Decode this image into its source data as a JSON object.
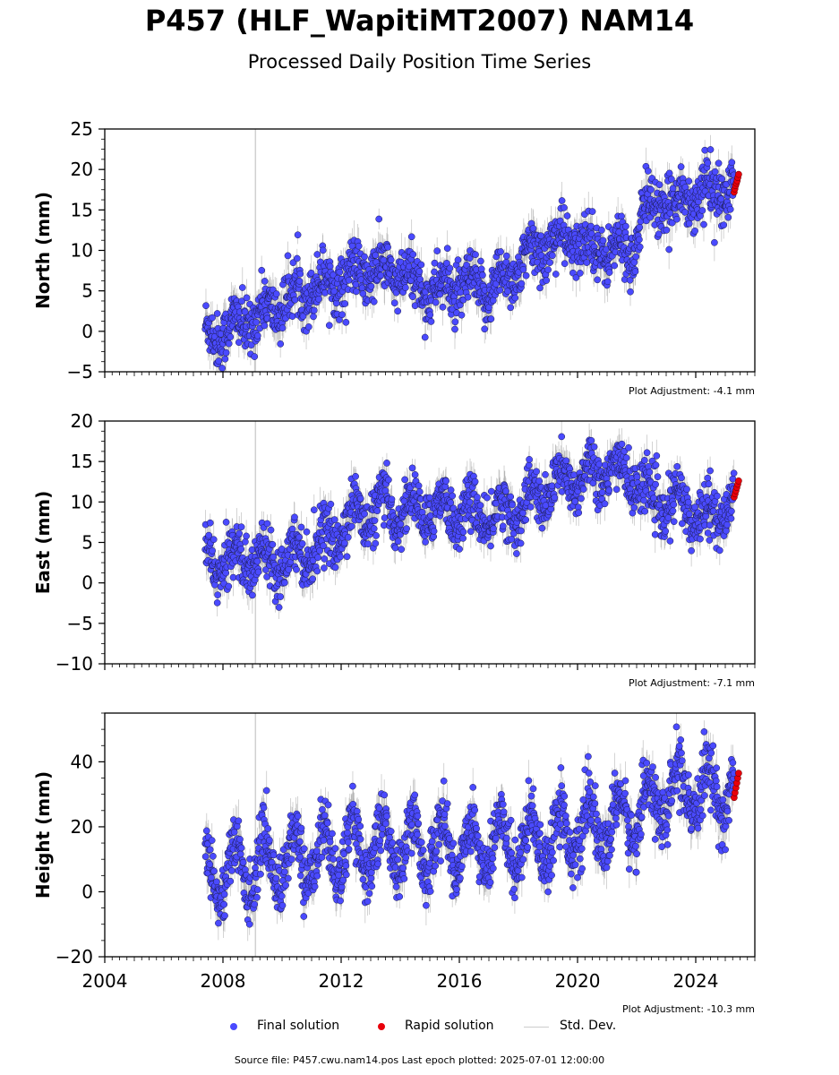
{
  "title": "P457 (HLF_WapitiMT2007) NAM14",
  "subtitle": "Processed Daily Position Time Series",
  "footer": "Source file: P457.cwu.nam14.pos  Last epoch plotted: 2025-07-01 12:00:00",
  "legend": {
    "final": "Final solution",
    "rapid": "Rapid solution",
    "std": "Std. Dev."
  },
  "colors": {
    "final_fill": "#4a4aff",
    "final_edge": "#1a1a4a",
    "rapid_fill": "#e8000b",
    "stddev": "#cccccc",
    "vline": "#d0d0d0"
  },
  "chart_data": [
    {
      "type": "scatter",
      "ylabel": "North (mm)",
      "ylim": [
        -5,
        25
      ],
      "yticks": [
        -5,
        0,
        5,
        10,
        15,
        20,
        25
      ],
      "adjustment": "Plot Adjustment: -4.1 mm",
      "trend": [
        [
          2007.4,
          -0.5
        ],
        [
          2008.0,
          0.0
        ],
        [
          2009.0,
          1.5
        ],
        [
          2010.0,
          3.5
        ],
        [
          2011.0,
          5.5
        ],
        [
          2012.0,
          6.5
        ],
        [
          2013.0,
          7.5
        ],
        [
          2014.0,
          7.0
        ],
        [
          2015.0,
          5.0
        ],
        [
          2016.0,
          5.5
        ],
        [
          2017.0,
          5.0
        ],
        [
          2018.0,
          8.0
        ],
        [
          2019.0,
          11.0
        ],
        [
          2020.0,
          11.0
        ],
        [
          2021.0,
          10.0
        ],
        [
          2021.9,
          10.0
        ],
        [
          2022.3,
          15.5
        ],
        [
          2023.0,
          15.5
        ],
        [
          2024.0,
          17.0
        ],
        [
          2025.5,
          17.5
        ]
      ],
      "amplitude": 1.3,
      "noise": 1.7,
      "rapid": {
        "x_start": 2025.3,
        "x_end": 2025.45,
        "values": [
          17.2,
          17.6,
          18.0,
          18.3,
          18.6,
          19.0,
          19.4
        ]
      }
    },
    {
      "type": "scatter",
      "ylabel": "East (mm)",
      "ylim": [
        -10,
        20
      ],
      "yticks": [
        -10,
        -5,
        0,
        5,
        10,
        15,
        20
      ],
      "adjustment": "Plot Adjustment: -7.1 mm",
      "trend": [
        [
          2007.4,
          2.5
        ],
        [
          2008.5,
          3.0
        ],
        [
          2009.5,
          3.0
        ],
        [
          2010.5,
          3.5
        ],
        [
          2011.5,
          5.0
        ],
        [
          2012.5,
          8.5
        ],
        [
          2013.5,
          9.0
        ],
        [
          2014.5,
          9.0
        ],
        [
          2016.0,
          9.0
        ],
        [
          2017.0,
          8.0
        ],
        [
          2018.0,
          9.0
        ],
        [
          2019.0,
          11.5
        ],
        [
          2020.0,
          13.0
        ],
        [
          2021.0,
          14.0
        ],
        [
          2022.0,
          13.0
        ],
        [
          2022.5,
          10.0
        ],
        [
          2023.5,
          9.5
        ],
        [
          2024.6,
          8.0
        ],
        [
          2025.5,
          11.5
        ]
      ],
      "amplitude": 2.0,
      "noise": 1.6,
      "rapid": {
        "x_start": 2025.3,
        "x_end": 2025.45,
        "values": [
          10.6,
          11.0,
          11.4,
          11.8,
          12.2,
          12.6
        ]
      }
    },
    {
      "type": "scatter",
      "ylabel": "Height (mm)",
      "ylim": [
        -20,
        55
      ],
      "yticks": [
        -20,
        0,
        20,
        40
      ],
      "adjustment": "Plot Adjustment: -10.3 mm",
      "trend": [
        [
          2007.4,
          5.0
        ],
        [
          2009.0,
          8.0
        ],
        [
          2011.0,
          11.0
        ],
        [
          2013.0,
          14.0
        ],
        [
          2015.0,
          14.0
        ],
        [
          2017.0,
          14.0
        ],
        [
          2019.0,
          17.0
        ],
        [
          2021.0,
          20.0
        ],
        [
          2022.0,
          24.0
        ],
        [
          2023.0,
          30.0
        ],
        [
          2024.0,
          30.0
        ],
        [
          2025.5,
          32.0
        ]
      ],
      "amplitude": 8.5,
      "noise": 4.5,
      "rapid": {
        "x_start": 2025.3,
        "x_end": 2025.45,
        "values": [
          29.0,
          30.5,
          32.0,
          33.5,
          35.0,
          36.5
        ]
      }
    }
  ],
  "x_axis": {
    "xlim": [
      2004,
      2026
    ],
    "ticks": [
      2004,
      2008,
      2012,
      2016,
      2020,
      2024
    ],
    "data_start": 2007.4,
    "data_end": 2025.3,
    "vline": 2009.1
  }
}
